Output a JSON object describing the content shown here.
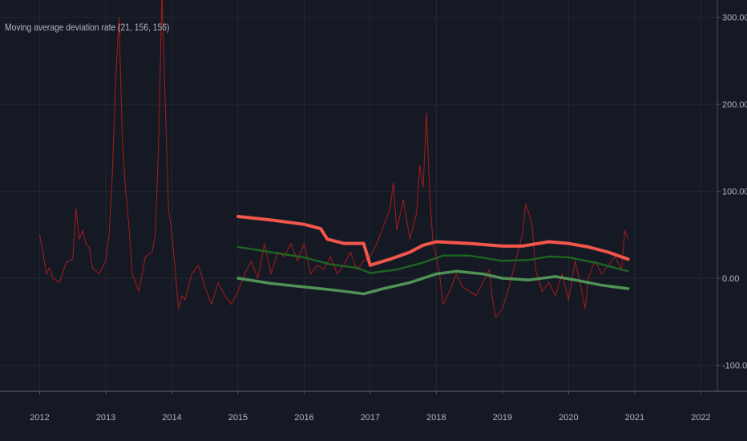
{
  "indicator": {
    "title": "Moving average deviation rate (21, 156, 156)"
  },
  "colors": {
    "background": "#151924",
    "grid": "#232734",
    "axis_line": "#4a4e5a",
    "tick_text": "#b2b5be",
    "deviation_line": "#b71c1c",
    "upper_band": "#ff5a4e",
    "mid_band": "#1e6b22",
    "lower_band": "#5aa85e"
  },
  "chart_data": {
    "type": "line",
    "title": "Moving average deviation rate (21, 156, 156)",
    "xlabel": "",
    "ylabel": "",
    "xlim": [
      2011.4,
      2022.25
    ],
    "ylim": [
      -130,
      320
    ],
    "grid": true,
    "x_ticks": [
      2012,
      2013,
      2014,
      2015,
      2016,
      2017,
      2018,
      2019,
      2020,
      2021,
      2022
    ],
    "x_tick_labels": [
      "2012",
      "2013",
      "2014",
      "2015",
      "2016",
      "2017",
      "2018",
      "2019",
      "2020",
      "2021",
      "2022"
    ],
    "y_ticks": [
      300,
      200,
      100,
      0,
      -100
    ],
    "y_tick_labels": [
      "300.00",
      "200.00",
      "100.00",
      "0.00",
      "-100.00"
    ],
    "series": [
      {
        "role": "deviation",
        "color": "#b71c1c",
        "x": [
          2012.0,
          2012.05,
          2012.1,
          2012.15,
          2012.2,
          2012.3,
          2012.4,
          2012.5,
          2012.55,
          2012.6,
          2012.65,
          2012.7,
          2012.75,
          2012.8,
          2012.9,
          2013.0,
          2013.05,
          2013.1,
          2013.15,
          2013.2,
          2013.25,
          2013.3,
          2013.35,
          2013.4,
          2013.5,
          2013.6,
          2013.7,
          2013.75,
          2013.8,
          2013.85,
          2013.9,
          2013.95,
          2014.0,
          2014.05,
          2014.1,
          2014.15,
          2014.2,
          2014.3,
          2014.4,
          2014.5,
          2014.6,
          2014.7,
          2014.8,
          2014.9,
          2015.0,
          2015.1,
          2015.2,
          2015.3,
          2015.4,
          2015.5,
          2015.6,
          2015.7,
          2015.8,
          2015.9,
          2016.0,
          2016.1,
          2016.2,
          2016.3,
          2016.4,
          2016.5,
          2016.6,
          2016.7,
          2016.8,
          2016.9,
          2017.0,
          2017.1,
          2017.2,
          2017.3,
          2017.35,
          2017.4,
          2017.5,
          2017.6,
          2017.7,
          2017.75,
          2017.8,
          2017.85,
          2017.9,
          2017.95,
          2018.0,
          2018.05,
          2018.1,
          2018.2,
          2018.3,
          2018.4,
          2018.5,
          2018.6,
          2018.7,
          2018.8,
          2018.85,
          2018.9,
          2019.0,
          2019.1,
          2019.2,
          2019.3,
          2019.35,
          2019.4,
          2019.45,
          2019.5,
          2019.6,
          2019.7,
          2019.8,
          2019.9,
          2020.0,
          2020.1,
          2020.2,
          2020.25,
          2020.3,
          2020.4,
          2020.5,
          2020.6,
          2020.7,
          2020.8,
          2020.85,
          2020.9
        ],
        "y": [
          50,
          30,
          5,
          12,
          0,
          -5,
          18,
          22,
          80,
          45,
          55,
          40,
          35,
          12,
          5,
          20,
          50,
          120,
          230,
          300,
          160,
          100,
          60,
          5,
          -15,
          25,
          30,
          50,
          160,
          330,
          200,
          80,
          50,
          10,
          -35,
          -20,
          -25,
          5,
          15,
          -10,
          -30,
          -5,
          -20,
          -30,
          -15,
          5,
          20,
          0,
          40,
          5,
          30,
          25,
          40,
          20,
          40,
          5,
          15,
          10,
          25,
          5,
          15,
          30,
          10,
          20,
          25,
          40,
          60,
          80,
          110,
          55,
          90,
          45,
          75,
          130,
          105,
          190,
          95,
          40,
          25,
          5,
          -30,
          -15,
          5,
          -10,
          -15,
          -20,
          -5,
          10,
          -25,
          -45,
          -35,
          -10,
          20,
          50,
          85,
          75,
          60,
          10,
          -15,
          -5,
          -20,
          5,
          -25,
          20,
          -15,
          -35,
          0,
          20,
          5,
          15,
          25,
          10,
          55,
          45
        ]
      },
      {
        "role": "upper_band",
        "color": "#ff5a4e",
        "x": [
          2015.0,
          2015.5,
          2016.0,
          2016.25,
          2016.35,
          2016.6,
          2016.9,
          2017.0,
          2017.3,
          2017.6,
          2017.8,
          2018.0,
          2018.5,
          2019.0,
          2019.3,
          2019.7,
          2020.0,
          2020.3,
          2020.6,
          2020.9
        ],
        "y": [
          71,
          67,
          62,
          57,
          45,
          40,
          40,
          15,
          22,
          30,
          38,
          42,
          40,
          37,
          37,
          42,
          40,
          36,
          30,
          22
        ]
      },
      {
        "role": "mid_band",
        "color": "#1e6b22",
        "x": [
          2015.0,
          2015.5,
          2016.0,
          2016.4,
          2016.8,
          2017.0,
          2017.4,
          2017.8,
          2018.1,
          2018.5,
          2019.0,
          2019.4,
          2019.7,
          2020.0,
          2020.4,
          2020.9
        ],
        "y": [
          36,
          30,
          24,
          16,
          12,
          6,
          10,
          18,
          26,
          26,
          20,
          21,
          25,
          24,
          18,
          8
        ]
      },
      {
        "role": "lower_band",
        "color": "#5aa85e",
        "x": [
          2015.0,
          2015.5,
          2016.0,
          2016.5,
          2016.9,
          2017.2,
          2017.6,
          2018.0,
          2018.3,
          2018.7,
          2019.0,
          2019.4,
          2019.8,
          2020.1,
          2020.5,
          2020.9
        ],
        "y": [
          0,
          -6,
          -10,
          -14,
          -18,
          -12,
          -5,
          5,
          8,
          5,
          0,
          -2,
          2,
          -2,
          -8,
          -12
        ]
      }
    ]
  }
}
